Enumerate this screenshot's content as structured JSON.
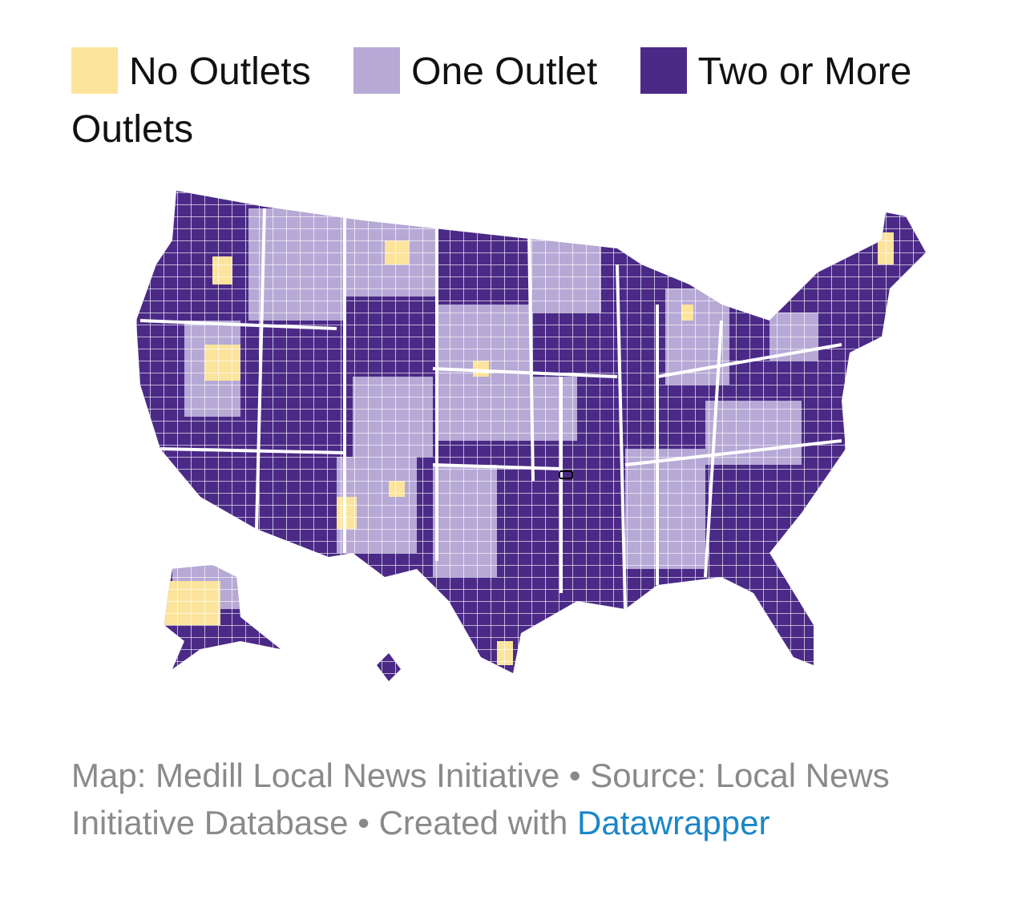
{
  "legend": [
    {
      "label": "No Outlets",
      "color": "#fde49c"
    },
    {
      "label": "One Outlet",
      "color": "#b6a9d6"
    },
    {
      "label": "Two or More Outlets",
      "color": "#4b2a87"
    }
  ],
  "footer": {
    "text": "Map: Medill Local News Initiative • Source: Local News Initiative Database • Created with",
    "link": "Datawrapper"
  }
}
